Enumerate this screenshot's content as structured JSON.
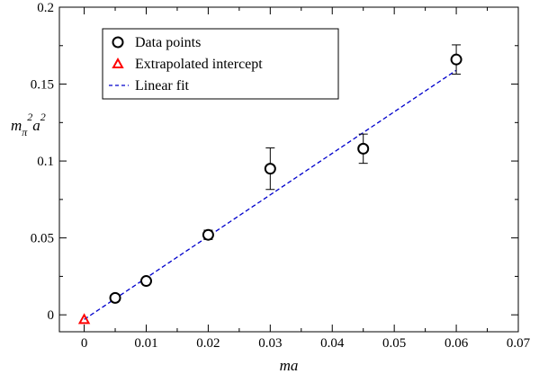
{
  "chart_data": {
    "type": "scatter",
    "xlabel": "ma",
    "ylabel_parts": {
      "base": "m",
      "sub": "π",
      "sup1": "2",
      "mid": "a",
      "sup2": "2"
    },
    "xlim": [
      -0.004,
      0.07
    ],
    "ylim": [
      -0.011,
      0.2
    ],
    "xticks": [
      0,
      0.01,
      0.02,
      0.03,
      0.04,
      0.05,
      0.06,
      0.07
    ],
    "xtick_labels": [
      "0",
      "0.01",
      "0.02",
      "0.03",
      "0.04",
      "0.05",
      "0.06",
      "0.07"
    ],
    "yticks": [
      0,
      0.05,
      0.1,
      0.15,
      0.2
    ],
    "ytick_labels": [
      "0",
      "0.05",
      "0.1",
      "0.15",
      "0.2"
    ],
    "grid": false,
    "legend_position": "top-left",
    "series": [
      {
        "name": "Data points",
        "marker": "circle",
        "color": "#000000",
        "points": [
          {
            "x": 0.005,
            "y": 0.011,
            "err": 0.0015
          },
          {
            "x": 0.01,
            "y": 0.022,
            "err": 0.0015
          },
          {
            "x": 0.02,
            "y": 0.052,
            "err": 0.003
          },
          {
            "x": 0.03,
            "y": 0.095,
            "err": 0.0135
          },
          {
            "x": 0.045,
            "y": 0.108,
            "err": 0.0095
          },
          {
            "x": 0.06,
            "y": 0.166,
            "err": 0.0095
          }
        ]
      },
      {
        "name": "Extrapolated intercept",
        "marker": "triangle",
        "color": "#ff0000",
        "points": [
          {
            "x": 0.0,
            "y": -0.003
          }
        ]
      },
      {
        "name": "Linear fit",
        "marker": "dashed-line",
        "color": "#0000cc",
        "line": [
          {
            "x": 0.0,
            "y": -0.003
          },
          {
            "x": 0.06,
            "y": 0.159
          }
        ]
      }
    ]
  }
}
